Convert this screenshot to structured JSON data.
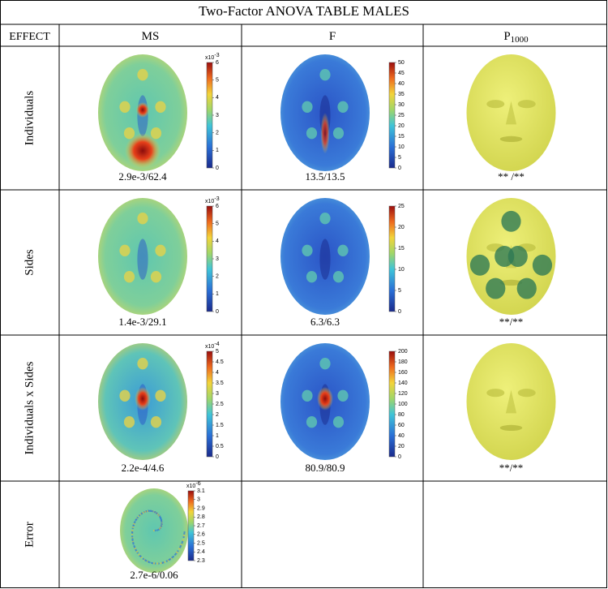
{
  "title": "Two-Factor ANOVA TABLE MALES",
  "header": [
    "EFFECT",
    "MS",
    "F",
    "P"
  ],
  "header_sub": "1000",
  "rows": [
    {
      "label": "Individuals",
      "cells": [
        {
          "caption": "2.9e-3/62.4",
          "colorbar": {
            "multiplier": {
              "base": "x10",
              "exp": "-3"
            },
            "lim": [
              0,
              6
            ],
            "ticks": [
              0,
              1,
              2,
              3,
              4,
              5,
              6
            ]
          }
        },
        {
          "caption": "13.5/13.5",
          "colorbar": {
            "lim": [
              0,
              50
            ],
            "ticks": [
              0,
              5,
              10,
              15,
              20,
              25,
              30,
              35,
              40,
              45,
              50
            ]
          }
        },
        {
          "caption": "** /**"
        }
      ]
    },
    {
      "label": "Sides",
      "cells": [
        {
          "caption": "1.4e-3/29.1",
          "colorbar": {
            "multiplier": {
              "base": "x10",
              "exp": "-3"
            },
            "lim": [
              0,
              6
            ],
            "ticks": [
              0,
              1,
              2,
              3,
              4,
              5,
              6
            ]
          }
        },
        {
          "caption": "6.3/6.3",
          "colorbar": {
            "lim": [
              0,
              25
            ],
            "ticks": [
              0,
              5,
              10,
              15,
              20,
              25
            ]
          }
        },
        {
          "caption": "**/**"
        }
      ]
    },
    {
      "label": "Individuals x Sides",
      "cells": [
        {
          "caption": "2.2e-4/4.6",
          "colorbar": {
            "multiplier": {
              "base": "x10",
              "exp": "-4"
            },
            "lim": [
              0,
              5
            ],
            "ticks": [
              0,
              0.5,
              1,
              1.5,
              2,
              2.5,
              3,
              3.5,
              4,
              4.5,
              5
            ]
          }
        },
        {
          "caption": "80.9/80.9",
          "colorbar": {
            "lim": [
              0,
              200
            ],
            "ticks": [
              0,
              20,
              40,
              60,
              80,
              100,
              120,
              140,
              160,
              180,
              200
            ]
          }
        },
        {
          "caption": "**/**"
        }
      ]
    },
    {
      "label": "Error",
      "cells": [
        {
          "caption": "2.7e-6/0.06",
          "colorbar": {
            "multiplier": {
              "base": "x10",
              "exp": "-6"
            },
            "lim": [
              2.3,
              3.1
            ],
            "ticks": [
              2.3,
              2.4,
              2.5,
              2.6,
              2.7,
              2.8,
              2.9,
              3,
              3.1
            ]
          }
        }
      ]
    }
  ]
}
